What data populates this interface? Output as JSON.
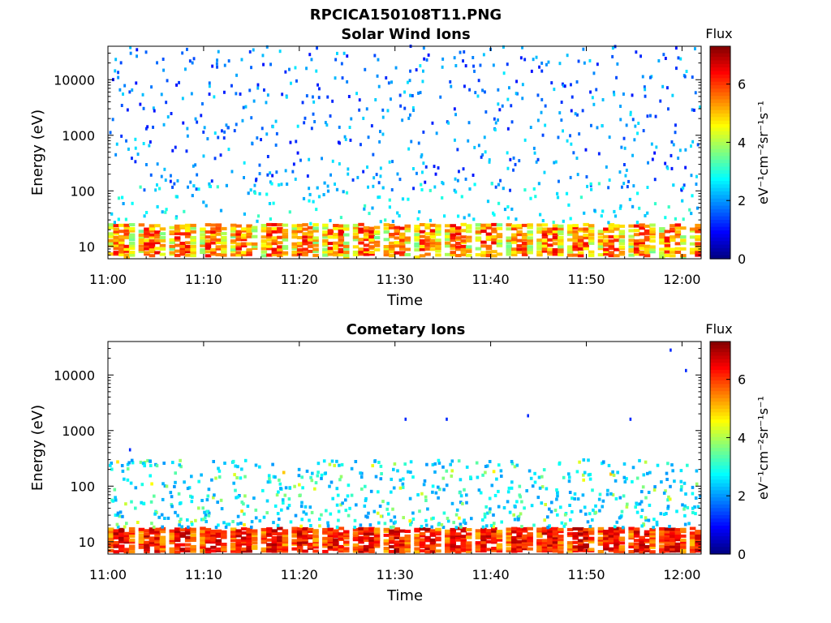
{
  "figure_title": "RPCICA150108T11.PNG",
  "chart_data": [
    {
      "type": "heatmap",
      "title": "Solar Wind Ions",
      "xlabel": "Time",
      "ylabel": "Energy (eV)",
      "x_ticks": [
        "11:00",
        "11:10",
        "11:20",
        "11:30",
        "11:40",
        "11:50",
        "12:00"
      ],
      "y_ticks": [
        "10",
        "100",
        "1000",
        "10000"
      ],
      "y_scale": "log",
      "ylim": [
        6,
        40000
      ],
      "xlim": [
        "11:00",
        "12:02"
      ],
      "colorbar": {
        "label": "Flux",
        "units": "eV⁻¹cm⁻²sr⁻¹s⁻¹",
        "ticks": [
          "0",
          "2",
          "4",
          "6"
        ],
        "range": [
          0,
          7.3
        ],
        "colormap": "jet"
      },
      "sweep_start_minutes": [
        0,
        3.2,
        6.4,
        9.6,
        12.8,
        16,
        19.2,
        22.4,
        25.6,
        28.8,
        32,
        35.2,
        38.4,
        41.6,
        44.8,
        48,
        51.2,
        54.4,
        57.6,
        60.8
      ],
      "features": {
        "low_energy_band_eV": [
          6,
          26
        ],
        "low_energy_flux_range": [
          3.5,
          6.5
        ],
        "sparse_high_energy_counts_eV": [
          100,
          40000
        ],
        "sparse_flux_range": [
          1,
          2.6
        ]
      }
    },
    {
      "type": "heatmap",
      "title": "Cometary Ions",
      "xlabel": "Time",
      "ylabel": "Energy (eV)",
      "x_ticks": [
        "11:00",
        "11:10",
        "11:20",
        "11:30",
        "11:40",
        "11:50",
        "12:00"
      ],
      "y_ticks": [
        "10",
        "100",
        "1000",
        "10000"
      ],
      "y_scale": "log",
      "ylim": [
        6,
        40000
      ],
      "xlim": [
        "11:00",
        "12:02"
      ],
      "colorbar": {
        "label": "Flux",
        "units": "eV⁻¹cm⁻²sr⁻¹s⁻¹",
        "ticks": [
          "0",
          "2",
          "4",
          "6"
        ],
        "range": [
          0,
          7.3
        ],
        "colormap": "jet"
      },
      "sweep_start_minutes": [
        0,
        3.2,
        6.4,
        9.6,
        12.8,
        16,
        19.2,
        22.4,
        25.6,
        28.8,
        32,
        35.2,
        38.4,
        41.6,
        44.8,
        48,
        51.2,
        54.4,
        57.6,
        60.8
      ],
      "features": {
        "low_energy_band_eV": [
          6,
          18
        ],
        "low_energy_flux_range": [
          5,
          7
        ],
        "mid_energy_band_eV": [
          18,
          300
        ],
        "mid_energy_flux_range": [
          2,
          4.5
        ],
        "isolated_counts": [
          {
            "time_minutes": 2.2,
            "energy_eV": 450
          },
          {
            "time_minutes": 31,
            "energy_eV": 1600
          },
          {
            "time_minutes": 35.3,
            "energy_eV": 1600
          },
          {
            "time_minutes": 43.8,
            "energy_eV": 1850
          },
          {
            "time_minutes": 54.5,
            "energy_eV": 1600
          },
          {
            "time_minutes": 58.7,
            "energy_eV": 28000
          },
          {
            "time_minutes": 60.3,
            "energy_eV": 12000
          }
        ]
      }
    }
  ]
}
